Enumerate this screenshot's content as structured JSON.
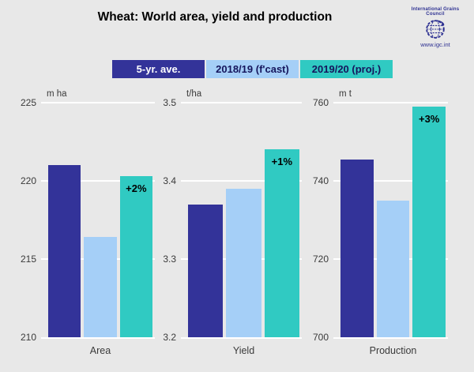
{
  "title": "Wheat: World area, yield and production",
  "logo": {
    "org": "International Grains Council",
    "url": "www.igc.int"
  },
  "colors": {
    "background": "#E8E8E8",
    "gridline": "#FFFFFF",
    "axis_text": "#3A3A3A",
    "title_text": "#000000",
    "annotation_text": "#000000",
    "logo_navy": "#2E3192"
  },
  "legend": [
    {
      "label": "5-yr. ave.",
      "color": "#333399",
      "text_color": "#FFFFFF"
    },
    {
      "label": "2018/19 (f'cast)",
      "color": "#A5CFF7",
      "text_color": "#15155C"
    },
    {
      "label": "2019/20 (proj.)",
      "color": "#30CAC2",
      "text_color": "#15155C"
    }
  ],
  "chart_data": {
    "type": "bar",
    "title": "Wheat: World area, yield and production",
    "series": [
      "5-yr. ave.",
      "2018/19 (f'cast)",
      "2019/20 (proj.)"
    ],
    "grid": true,
    "legend_position": "top",
    "panels": [
      {
        "category": "Area",
        "unit": "m ha",
        "ylim": [
          210,
          225
        ],
        "yticks": [
          "225",
          "220",
          "215",
          "210"
        ],
        "values": [
          221.0,
          216.4,
          220.3
        ],
        "annotation": "+2%"
      },
      {
        "category": "Yield",
        "unit": "t/ha",
        "ylim": [
          3.2,
          3.5
        ],
        "yticks": [
          "3.5",
          "3.4",
          "3.3",
          "3.2"
        ],
        "values": [
          3.37,
          3.39,
          3.44
        ],
        "annotation": "+1%"
      },
      {
        "category": "Production",
        "unit": "m t",
        "ylim": [
          700,
          760
        ],
        "yticks": [
          "760",
          "740",
          "720",
          "700"
        ],
        "values": [
          745.5,
          735,
          759
        ],
        "annotation": "+3%"
      }
    ]
  }
}
